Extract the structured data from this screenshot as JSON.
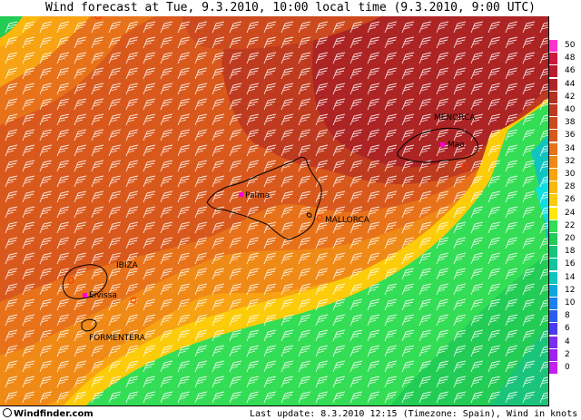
{
  "title": "Wind forecast at Tue, 9.3.2010, 10:00 local time (9.3.2010, 9:00 UTC)",
  "footer": {
    "logo": "Windfinder.com",
    "update": "Last update: 8.3.2010 12:15 (Timezone: Spain), Wind in knots"
  },
  "places": {
    "menorca": "MENORCA",
    "mao": "Mao",
    "palma": "Palma",
    "mallorca": "MALLORCA",
    "ibiza": "IBIZA",
    "eivissa": "Eivissa",
    "formentera": "FORMENTERA"
  },
  "legend": [
    {
      "label": "50",
      "color": "#ff33cc"
    },
    {
      "label": "48",
      "color": "#cc1a3c"
    },
    {
      "label": "46",
      "color": "#b81f2c"
    },
    {
      "label": "44",
      "color": "#ad2424"
    },
    {
      "label": "42",
      "color": "#b53022"
    },
    {
      "label": "40",
      "color": "#bf3b1f"
    },
    {
      "label": "38",
      "color": "#cc4a1e"
    },
    {
      "label": "36",
      "color": "#d9591d"
    },
    {
      "label": "34",
      "color": "#e8721a"
    },
    {
      "label": "32",
      "color": "#f08a17"
    },
    {
      "label": "30",
      "color": "#f7a313"
    },
    {
      "label": "28",
      "color": "#fab80e"
    },
    {
      "label": "26",
      "color": "#fccc0a"
    },
    {
      "label": "24",
      "color": "#ffe805"
    },
    {
      "label": "22",
      "color": "#33dd55"
    },
    {
      "label": "20",
      "color": "#22cc55"
    },
    {
      "label": "18",
      "color": "#1ac47a"
    },
    {
      "label": "16",
      "color": "#14c49c"
    },
    {
      "label": "14",
      "color": "#10c4c0"
    },
    {
      "label": "12",
      "color": "#0ea5e0"
    },
    {
      "label": "10",
      "color": "#1a80f0"
    },
    {
      "label": "8",
      "color": "#2b5cf0"
    },
    {
      "label": "6",
      "color": "#4a3af0"
    },
    {
      "label": "4",
      "color": "#7a2ef0"
    },
    {
      "label": "2",
      "color": "#a020f0"
    },
    {
      "label": "0",
      "color": "#c020f0"
    }
  ]
}
